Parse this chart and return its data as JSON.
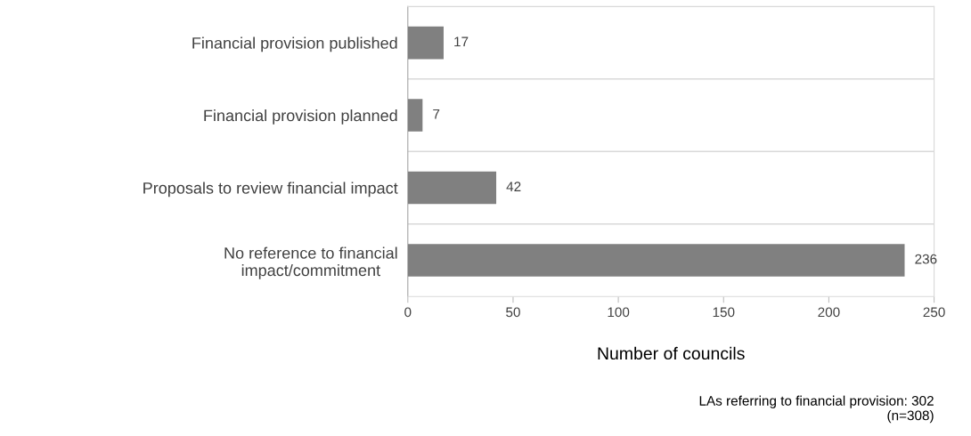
{
  "chart_data": {
    "type": "bar",
    "orientation": "horizontal",
    "categories": [
      "Financial provision published",
      "Financial provision planned",
      "Proposals to review financial impact",
      "No reference to financial\nimpact/commitment"
    ],
    "values": [
      17,
      7,
      42,
      236
    ],
    "color": "#808080",
    "xlim": [
      0,
      250
    ],
    "xticks": [
      0,
      50,
      100,
      150,
      200,
      250
    ],
    "xlabel": "Number of councils",
    "data_labels": true,
    "grid": "y",
    "annotations": [
      "LAs referring to financial provision: 302\n(n=308)"
    ]
  }
}
